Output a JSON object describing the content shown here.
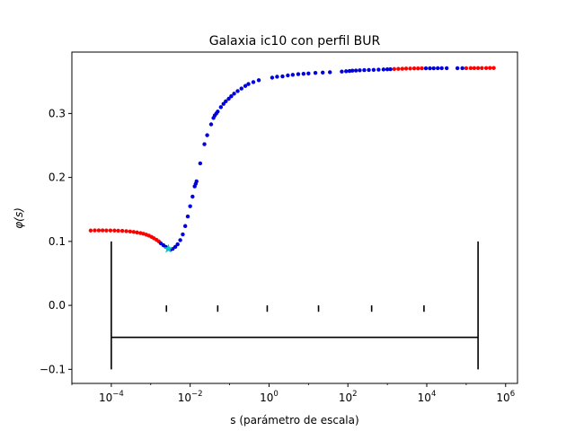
{
  "chart_data": {
    "type": "scatter",
    "title": "Galaxia ic10 con perfil BUR",
    "xlabel": "s (parámetro de escala)",
    "ylabel": "φ(s)",
    "xscale": "log",
    "xlim": [
      1e-05,
      2000000.0
    ],
    "ylim": [
      -0.122,
      0.396
    ],
    "grid": false,
    "x_ticks": [
      {
        "value": 0.0001,
        "base": "10",
        "exp": "−4"
      },
      {
        "value": 0.01,
        "base": "10",
        "exp": "−2"
      },
      {
        "value": 1,
        "base": "10",
        "exp": "0"
      },
      {
        "value": 100,
        "base": "10",
        "exp": "2"
      },
      {
        "value": 10000,
        "base": "10",
        "exp": "4"
      },
      {
        "value": 1000000,
        "base": "10",
        "exp": "6"
      }
    ],
    "y_ticks": [
      {
        "value": -0.1,
        "label": "−0.1"
      },
      {
        "value": 0.0,
        "label": "0.0"
      },
      {
        "value": 0.1,
        "label": "0.1"
      },
      {
        "value": 0.2,
        "label": "0.2"
      },
      {
        "value": 0.3,
        "label": "0.3"
      }
    ],
    "series": [
      {
        "color": "#ff0000",
        "marker": "dot",
        "points": [
          [
            3e-05,
            0.117
          ],
          [
            3.8e-05,
            0.1172
          ],
          [
            4.8e-05,
            0.1172
          ],
          [
            6e-05,
            0.1172
          ],
          [
            7.5e-05,
            0.1171
          ],
          [
            9.5e-05,
            0.1171
          ],
          [
            0.00012,
            0.117
          ],
          [
            0.00015,
            0.1168
          ],
          [
            0.00019,
            0.1165
          ],
          [
            0.00024,
            0.116
          ],
          [
            0.0003,
            0.1155
          ],
          [
            0.00037,
            0.1148
          ],
          [
            0.00045,
            0.114
          ],
          [
            0.00055,
            0.113
          ],
          [
            0.00065,
            0.112
          ],
          [
            0.00077,
            0.1105
          ],
          [
            0.0009,
            0.109
          ],
          [
            0.00105,
            0.107
          ],
          [
            0.0012,
            0.105
          ],
          [
            0.0014,
            0.1025
          ],
          [
            0.0016,
            0.1
          ],
          [
            1500,
            0.3695
          ],
          [
            1900,
            0.3698
          ],
          [
            2400,
            0.37
          ],
          [
            3000,
            0.3702
          ],
          [
            3800,
            0.3703
          ],
          [
            4800,
            0.3704
          ],
          [
            6000,
            0.3705
          ],
          [
            7500,
            0.3706
          ],
          [
            100000,
            0.3708
          ],
          [
            130000,
            0.3709
          ],
          [
            160000,
            0.3709
          ],
          [
            200000,
            0.371
          ],
          [
            250000,
            0.371
          ],
          [
            320000,
            0.371
          ],
          [
            400000,
            0.3711
          ],
          [
            500000,
            0.3711
          ]
        ]
      },
      {
        "color": "#0000dd",
        "marker": "dot",
        "points": [
          [
            0.0018,
            0.097
          ],
          [
            0.0021,
            0.094
          ],
          [
            0.0024,
            0.0915
          ],
          [
            0.0027,
            0.0895
          ],
          [
            0.0032,
            0.0875
          ],
          [
            0.0036,
            0.0885
          ],
          [
            0.0042,
            0.0915
          ],
          [
            0.0048,
            0.0955
          ],
          [
            0.0056,
            0.102
          ],
          [
            0.0065,
            0.111
          ],
          [
            0.0075,
            0.124
          ],
          [
            0.0087,
            0.139
          ],
          [
            0.01,
            0.155
          ],
          [
            0.0115,
            0.17
          ],
          [
            0.013,
            0.186
          ],
          [
            0.0138,
            0.19
          ],
          [
            0.0145,
            0.194
          ],
          [
            0.018,
            0.222
          ],
          [
            0.023,
            0.252
          ],
          [
            0.027,
            0.266
          ],
          [
            0.034,
            0.283
          ],
          [
            0.039,
            0.293
          ],
          [
            0.042,
            0.297
          ],
          [
            0.046,
            0.3
          ],
          [
            0.05,
            0.303
          ],
          [
            0.06,
            0.31
          ],
          [
            0.07,
            0.315
          ],
          [
            0.08,
            0.319
          ],
          [
            0.095,
            0.323
          ],
          [
            0.11,
            0.327
          ],
          [
            0.13,
            0.331
          ],
          [
            0.16,
            0.335
          ],
          [
            0.2,
            0.339
          ],
          [
            0.25,
            0.343
          ],
          [
            0.3,
            0.346
          ],
          [
            0.4,
            0.349
          ],
          [
            0.55,
            0.352
          ],
          [
            1.2,
            0.356
          ],
          [
            1.6,
            0.3575
          ],
          [
            2.2,
            0.358
          ],
          [
            3,
            0.3595
          ],
          [
            4,
            0.3605
          ],
          [
            5.5,
            0.3615
          ],
          [
            7.5,
            0.362
          ],
          [
            10,
            0.3625
          ],
          [
            15,
            0.3635
          ],
          [
            23,
            0.364
          ],
          [
            35,
            0.3645
          ],
          [
            70,
            0.3655
          ],
          [
            90,
            0.366
          ],
          [
            110,
            0.3665
          ],
          [
            130,
            0.367
          ],
          [
            160,
            0.3672
          ],
          [
            200,
            0.3675
          ],
          [
            260,
            0.3678
          ],
          [
            340,
            0.368
          ],
          [
            450,
            0.3682
          ],
          [
            600,
            0.3685
          ],
          [
            800,
            0.3688
          ],
          [
            1000,
            0.369
          ],
          [
            1200,
            0.3692
          ],
          [
            9500,
            0.3706
          ],
          [
            12000,
            0.3707
          ],
          [
            15000,
            0.3707
          ],
          [
            19000,
            0.3708
          ],
          [
            24000,
            0.3708
          ],
          [
            32000,
            0.3708
          ],
          [
            60000,
            0.3708
          ],
          [
            80000,
            0.3708
          ]
        ]
      },
      {
        "color": "#00c8c8",
        "marker": "star",
        "points": [
          [
            0.0028,
            0.0885
          ]
        ]
      }
    ],
    "annotations": [
      {
        "type": "scale-bracket",
        "color": "#000000",
        "from": 0.0001,
        "to": 200000,
        "bar_y": -0.05,
        "end_ymin": -0.1,
        "end_ymax": 0.1,
        "inner_ticks_x": [
          0.0025,
          0.05,
          0.9,
          18,
          400,
          8500
        ],
        "inner_tick_ymin": -0.01,
        "inner_tick_ymax": 0.0
      }
    ]
  }
}
